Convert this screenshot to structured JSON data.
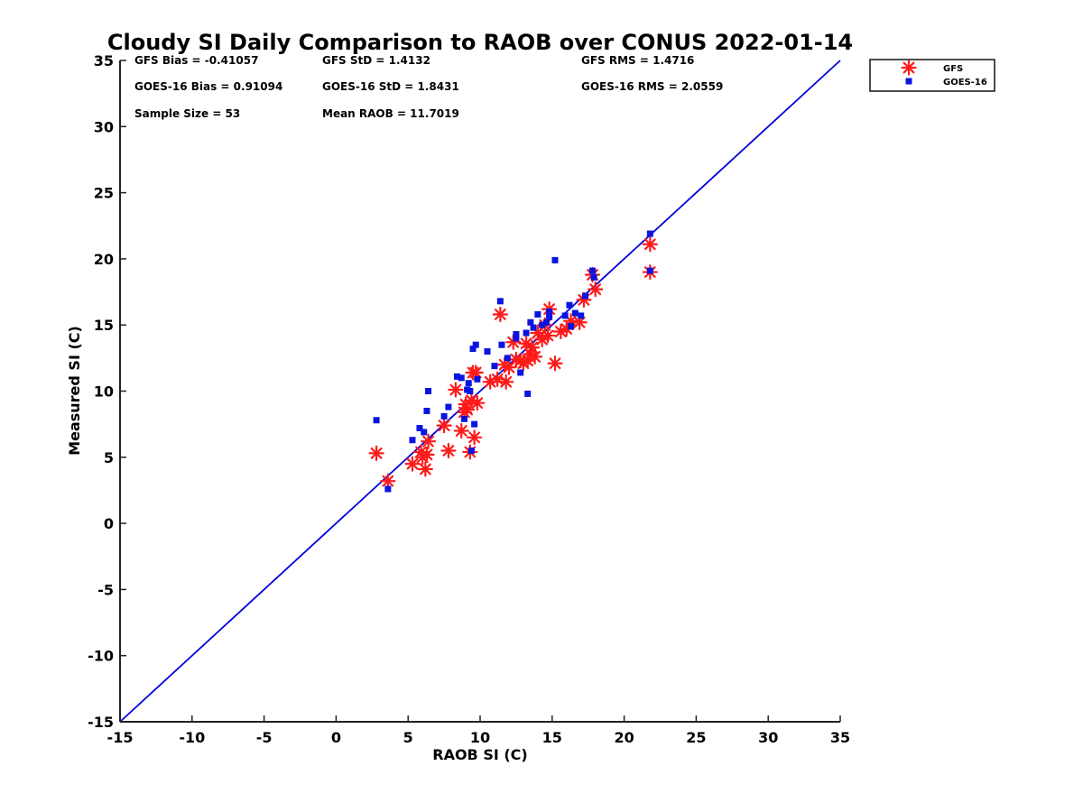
{
  "chart_data": {
    "type": "scatter",
    "title": "Cloudy SI Daily Comparison to RAOB over CONUS 2022-01-14",
    "xlabel": "RAOB SI (C)",
    "ylabel": "Measured SI (C)",
    "xlim": [
      -15,
      35
    ],
    "ylim": [
      -15,
      35
    ],
    "xticks": [
      "-15",
      "-10",
      "-5",
      "0",
      "5",
      "10",
      "15",
      "20",
      "25",
      "30",
      "35"
    ],
    "yticks": [
      "-15",
      "-10",
      "-5",
      "0",
      "5",
      "10",
      "15",
      "20",
      "25",
      "30",
      "35"
    ],
    "grid": false,
    "legend_position": "outside-top-right",
    "reference_line": {
      "x": [
        -15,
        35
      ],
      "y": [
        -15,
        35
      ],
      "color": "#0000dd"
    },
    "stats": [
      "GFS Bias = -0.41057",
      "GFS StD = 1.4132",
      "GFS RMS = 1.4716",
      "GOES-16 Bias = 0.91094",
      "GOES-16 StD = 1.8431",
      "GOES-16 RMS = 2.0559",
      "Sample Size = 53",
      "Mean RAOB = 11.7019"
    ],
    "series": [
      {
        "name": "GFS",
        "marker": "asterisk",
        "color": "#ff1a1a",
        "points": [
          [
            2.8,
            5.3
          ],
          [
            3.6,
            3.2
          ],
          [
            5.3,
            4.5
          ],
          [
            5.9,
            5.4
          ],
          [
            6.0,
            5.0
          ],
          [
            6.2,
            4.1
          ],
          [
            6.3,
            5.2
          ],
          [
            6.4,
            6.2
          ],
          [
            7.5,
            7.4
          ],
          [
            7.8,
            5.5
          ],
          [
            8.3,
            10.1
          ],
          [
            8.7,
            7.0
          ],
          [
            8.9,
            8.4
          ],
          [
            9.0,
            9.0
          ],
          [
            9.1,
            8.6
          ],
          [
            9.3,
            5.4
          ],
          [
            9.4,
            9.3
          ],
          [
            9.5,
            11.4
          ],
          [
            9.6,
            6.5
          ],
          [
            9.7,
            11.4
          ],
          [
            9.8,
            9.1
          ],
          [
            10.7,
            10.7
          ],
          [
            11.2,
            10.9
          ],
          [
            11.4,
            15.8
          ],
          [
            11.7,
            12.0
          ],
          [
            11.8,
            10.7
          ],
          [
            12.0,
            11.8
          ],
          [
            12.3,
            13.7
          ],
          [
            12.5,
            12.4
          ],
          [
            12.8,
            12.3
          ],
          [
            13.0,
            12.1
          ],
          [
            13.2,
            13.6
          ],
          [
            13.3,
            12.3
          ],
          [
            13.5,
            12.8
          ],
          [
            13.6,
            13.3
          ],
          [
            13.8,
            12.6
          ],
          [
            14.0,
            14.4
          ],
          [
            14.3,
            13.9
          ],
          [
            14.5,
            15.0
          ],
          [
            14.7,
            14.2
          ],
          [
            14.8,
            16.2
          ],
          [
            15.2,
            12.1
          ],
          [
            15.6,
            14.5
          ],
          [
            16.0,
            14.7
          ],
          [
            16.3,
            15.3
          ],
          [
            16.9,
            15.2
          ],
          [
            17.2,
            16.9
          ],
          [
            17.8,
            18.8
          ],
          [
            18.0,
            17.7
          ],
          [
            21.8,
            21.1
          ],
          [
            21.8,
            19.0
          ]
        ]
      },
      {
        "name": "GOES-16",
        "marker": "square",
        "color": "#0a14e0",
        "points": [
          [
            2.8,
            7.8
          ],
          [
            3.6,
            2.6
          ],
          [
            5.3,
            6.3
          ],
          [
            5.8,
            7.2
          ],
          [
            6.1,
            6.9
          ],
          [
            6.3,
            8.5
          ],
          [
            6.4,
            10.0
          ],
          [
            7.5,
            8.1
          ],
          [
            7.8,
            8.8
          ],
          [
            8.4,
            11.1
          ],
          [
            8.7,
            11.0
          ],
          [
            8.9,
            7.9
          ],
          [
            9.1,
            10.1
          ],
          [
            9.2,
            10.6
          ],
          [
            9.3,
            10.0
          ],
          [
            9.4,
            5.5
          ],
          [
            9.5,
            13.2
          ],
          [
            9.6,
            7.5
          ],
          [
            9.7,
            13.5
          ],
          [
            9.8,
            10.9
          ],
          [
            10.5,
            13.0
          ],
          [
            11.0,
            11.9
          ],
          [
            11.4,
            16.8
          ],
          [
            11.5,
            13.5
          ],
          [
            11.9,
            12.5
          ],
          [
            12.5,
            14.0
          ],
          [
            12.5,
            14.3
          ],
          [
            12.8,
            11.4
          ],
          [
            13.2,
            14.4
          ],
          [
            13.3,
            9.8
          ],
          [
            13.5,
            15.2
          ],
          [
            13.7,
            14.8
          ],
          [
            14.0,
            15.8
          ],
          [
            14.3,
            15.0
          ],
          [
            14.6,
            15.2
          ],
          [
            14.8,
            15.6
          ],
          [
            14.8,
            16.0
          ],
          [
            15.2,
            19.9
          ],
          [
            15.9,
            15.7
          ],
          [
            16.2,
            16.5
          ],
          [
            16.3,
            14.9
          ],
          [
            16.6,
            15.9
          ],
          [
            17.0,
            15.7
          ],
          [
            17.3,
            17.2
          ],
          [
            17.8,
            19.1
          ],
          [
            17.9,
            18.6
          ],
          [
            21.8,
            21.9
          ],
          [
            21.8,
            19.1
          ]
        ]
      }
    ]
  }
}
